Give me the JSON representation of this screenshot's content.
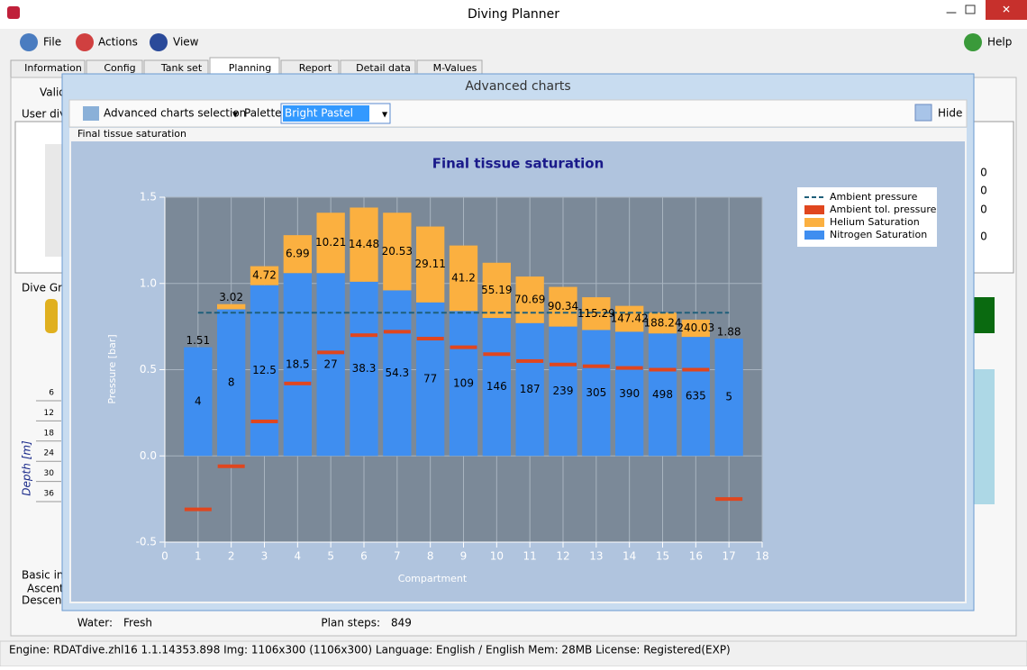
{
  "window": {
    "title": "Diving Planner"
  },
  "menu": [
    "File",
    "Actions",
    "View",
    "Help"
  ],
  "tabs": [
    "Information",
    "Config",
    "Tank set",
    "Planning",
    "Report",
    "Detail data",
    "M-Values"
  ],
  "background": {
    "valid": "Valid",
    "user_dive": "User dive",
    "dive_graph": "Dive Grap",
    "depth_label": "Depth [m]",
    "depth_ticks": [
      "6",
      "12",
      "18",
      "24",
      "30",
      "36"
    ],
    "basic_info": "Basic info",
    "ascent": "Ascent r",
    "descent": "Descent r",
    "water_label": "Water:",
    "water_value": "Fresh",
    "plan_steps_label": "Plan steps:",
    "plan_steps_value": "849",
    "grid_values": [
      "0",
      "0",
      "0",
      "0"
    ]
  },
  "dialog": {
    "title": "Advanced charts",
    "selection": "Advanced charts selection",
    "palette_label": "Palette",
    "palette_value": "Bright Pastel",
    "hide": "Hide",
    "panel_label": "Final tissue saturation"
  },
  "status_bar": "Engine: RDATdive.zhl16 1.1.14353.898   Img: 1106x300 (1106x300)   Language: English / English   Mem: 28MB   License: Registered(EXP)",
  "chart_data": {
    "type": "stacked_bar",
    "title": "Final tissue saturation",
    "xlabel": "Compartment",
    "ylabel": "Pressure [bar]",
    "x": [
      1,
      2,
      3,
      4,
      5,
      6,
      7,
      8,
      9,
      10,
      11,
      12,
      13,
      14,
      15,
      16,
      17
    ],
    "xlim": [
      0,
      18
    ],
    "xticks": [
      0,
      1,
      2,
      3,
      4,
      5,
      6,
      7,
      8,
      9,
      10,
      11,
      12,
      13,
      14,
      15,
      16,
      17,
      18
    ],
    "ylim": [
      -0.5,
      1.5
    ],
    "yticks": [
      -0.5,
      {
        "value": 0,
        "label": "0.0"
      },
      0.5,
      {
        "value": 1,
        "label": "1.0"
      },
      1.5
    ],
    "grid": true,
    "legend": "right",
    "series": [
      {
        "name": "Ambient pressure",
        "kind": "line",
        "color": "#1f5f7a",
        "values": [
          0.83,
          0.83,
          0.83,
          0.83,
          0.83,
          0.83,
          0.83,
          0.83,
          0.83,
          0.83,
          0.83,
          0.83,
          0.83,
          0.83,
          0.83,
          0.83,
          0.83
        ]
      },
      {
        "name": "Ambient tol. pressure",
        "kind": "marker",
        "color": "#e0461e",
        "values": [
          -0.31,
          -0.06,
          0.2,
          0.42,
          0.6,
          0.7,
          0.72,
          0.68,
          0.63,
          0.59,
          0.55,
          0.53,
          0.52,
          0.51,
          0.5,
          0.5,
          -0.25
        ]
      },
      {
        "name": "Helium Saturation",
        "kind": "bar",
        "color": "#fbb040",
        "values": [
          0.0,
          0.03,
          0.11,
          0.22,
          0.35,
          0.43,
          0.45,
          0.44,
          0.38,
          0.32,
          0.27,
          0.23,
          0.19,
          0.15,
          0.12,
          0.1,
          0.0
        ],
        "labels": [
          "1.51",
          "3.02",
          "4.72",
          "6.99",
          "10.21",
          "14.48",
          "20.53",
          "29.11",
          "41.2",
          "55.19",
          "70.69",
          "90.34",
          "115.29",
          "147.42",
          "188.24",
          "240.03",
          "1.88"
        ]
      },
      {
        "name": "Nitrogen Saturation",
        "kind": "bar",
        "color": "#3f8ef0",
        "values": [
          0.63,
          0.85,
          0.99,
          1.06,
          1.06,
          1.01,
          0.96,
          0.89,
          0.84,
          0.8,
          0.77,
          0.75,
          0.73,
          0.72,
          0.71,
          0.69,
          0.68
        ],
        "labels": [
          "4",
          "8",
          "12.5",
          "18.5",
          "27",
          "38.3",
          "54.3",
          "77",
          "109",
          "146",
          "187",
          "239",
          "305",
          "390",
          "498",
          "635",
          "5"
        ]
      }
    ]
  }
}
